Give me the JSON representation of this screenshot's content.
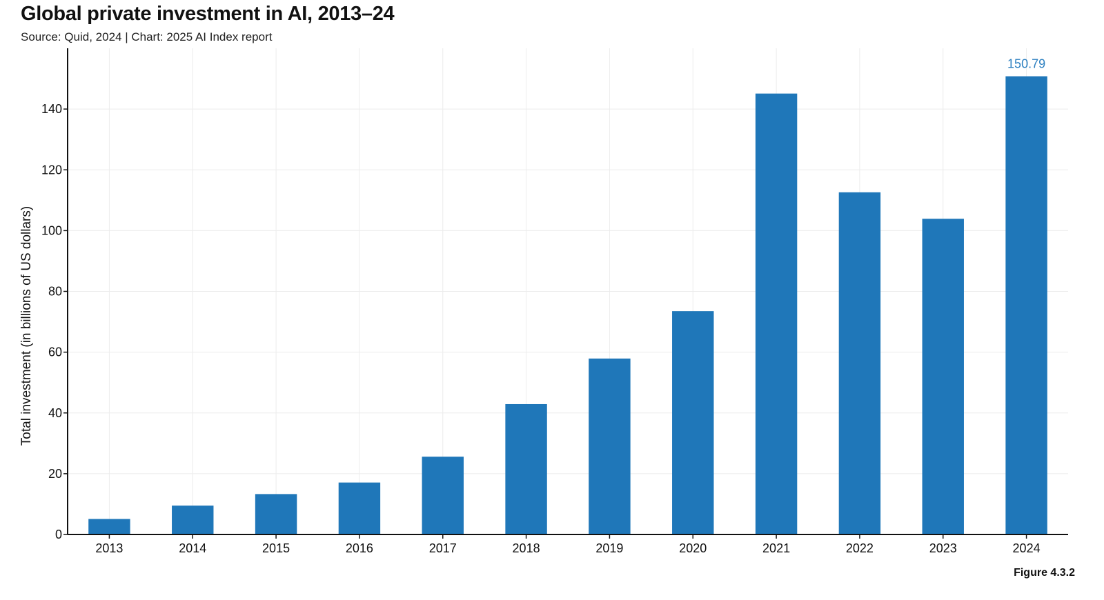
{
  "header": {
    "title": "Global private investment in AI, 2013–24",
    "subtitle": "Source: Quid, 2024 | Chart: 2025 AI Index report"
  },
  "footer": {
    "figure_label": "Figure 4.3.2"
  },
  "chart_data": {
    "type": "bar",
    "title": "Global private investment in AI, 2013–24",
    "subtitle": "Source: Quid, 2024 | Chart: 2025 AI Index report",
    "xlabel": "",
    "ylabel": "Total investment (in billions of US dollars)",
    "categories": [
      "2013",
      "2014",
      "2015",
      "2016",
      "2017",
      "2018",
      "2019",
      "2020",
      "2021",
      "2022",
      "2023",
      "2024"
    ],
    "values": [
      5.1,
      9.5,
      13.3,
      17.1,
      25.6,
      42.9,
      57.9,
      73.5,
      145.1,
      112.6,
      103.9,
      150.79
    ],
    "ylim": [
      0,
      160
    ],
    "yticks": [
      0,
      20,
      40,
      60,
      80,
      100,
      120,
      140
    ],
    "data_labels": [
      {
        "category": "2024",
        "text": "150.79"
      }
    ],
    "bar_color": "#1f77b9",
    "label_color": "#2b7fc0",
    "grid": true,
    "legend": "none"
  }
}
